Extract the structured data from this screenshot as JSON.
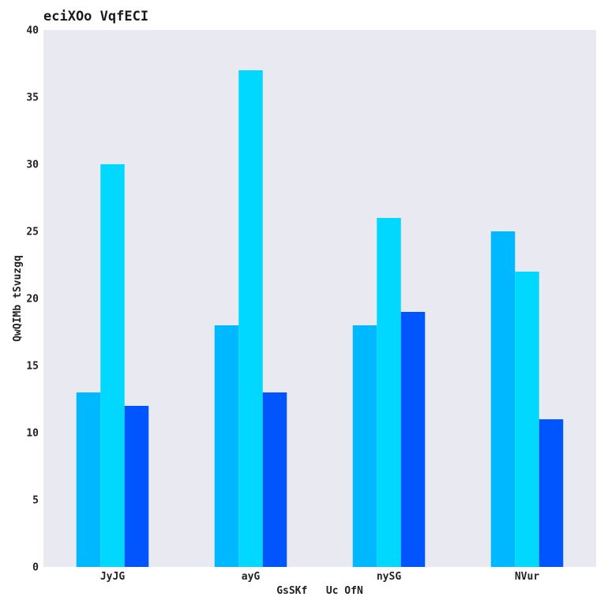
{
  "chart_data": {
    "type": "bar",
    "title": "eciXOo VqfECI",
    "xlabel": "GsSKf   Uc OfN",
    "ylabel": "QwQIMb tSvuzgq",
    "categories": [
      "JyJG",
      "ayG",
      "nySG",
      "NVur"
    ],
    "series": [
      {
        "values": [
          13,
          18,
          18,
          25
        ],
        "color": "#00b8ff"
      },
      {
        "values": [
          30,
          37,
          26,
          22
        ],
        "color": "#00d8ff"
      },
      {
        "values": [
          12,
          13,
          19,
          11
        ],
        "color": "#0055ff"
      }
    ],
    "ylim": [
      0,
      40
    ],
    "yticks": [
      0,
      5,
      10,
      15,
      20,
      25,
      30,
      35,
      40
    ],
    "grid": false,
    "legend": "none",
    "plot_background": "#e9e9f1"
  }
}
